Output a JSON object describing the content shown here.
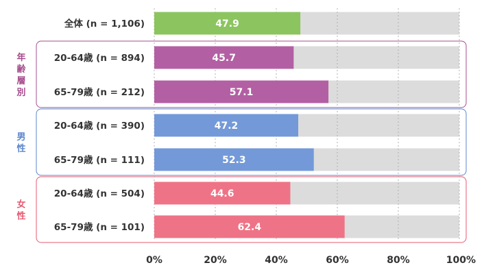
{
  "chart_data": {
    "type": "bar",
    "orientation": "horizontal",
    "xlim": [
      0,
      100
    ],
    "grid": true,
    "x_ticks": [
      "0%",
      "20%",
      "40%",
      "60%",
      "80%",
      "100%"
    ],
    "categories": [
      "全体 (n = 1,106)",
      "20-64歳 (n = 894)",
      "65-79歳 (n = 212)",
      "20-64歳 (n = 390)",
      "65-79歳 (n = 111)",
      "20-64歳 (n = 504)",
      "65-79歳 (n = 101)"
    ],
    "values": [
      47.9,
      45.7,
      57.1,
      47.2,
      52.3,
      44.6,
      62.4
    ],
    "value_labels": [
      "47.9",
      "45.7",
      "57.1",
      "47.2",
      "52.3",
      "44.6",
      "62.4"
    ],
    "bar_colors": [
      "#8cc460",
      "#b35fa3",
      "#b35fa3",
      "#7399d8",
      "#7399d8",
      "#ef7386",
      "#ef7386"
    ],
    "track_color": "#dcdcdc",
    "groups": [
      {
        "label": "年齢層別",
        "rows": [
          1,
          2
        ],
        "color": "#a64c8c"
      },
      {
        "label": "男性",
        "rows": [
          3,
          4
        ],
        "color": "#5b86cc"
      },
      {
        "label": "女性",
        "rows": [
          5,
          6
        ],
        "color": "#e45a72"
      }
    ]
  }
}
